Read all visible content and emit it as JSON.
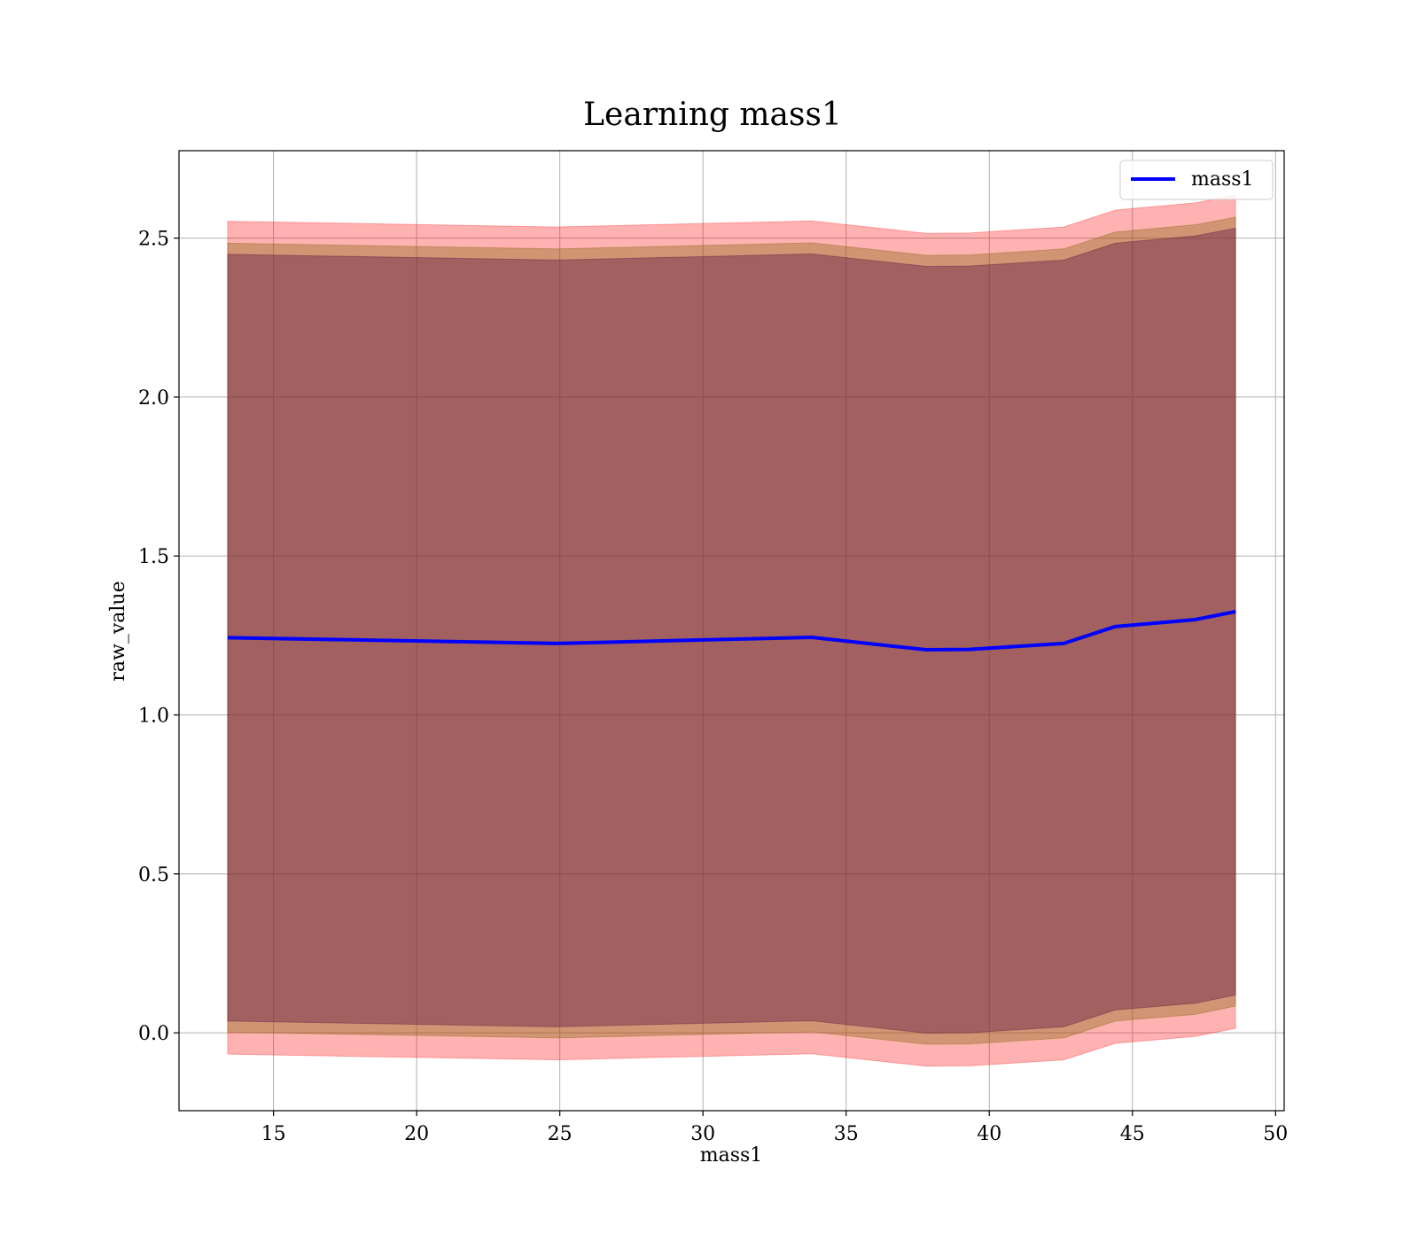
{
  "chart_data": {
    "type": "line",
    "title": "Learning mass1",
    "xlabel": "mass1",
    "ylabel": "raw_value",
    "xlim": [
      11.7,
      50.3
    ],
    "ylim": [
      -0.245,
      2.775
    ],
    "xticks": [
      15,
      20,
      25,
      30,
      35,
      40,
      45,
      50
    ],
    "yticks": [
      0.0,
      0.5,
      1.0,
      1.5,
      2.0,
      2.5
    ],
    "xtick_labels": [
      "15",
      "20",
      "25",
      "30",
      "35",
      "40",
      "45",
      "50"
    ],
    "ytick_labels": [
      "0.0",
      "0.5",
      "1.0",
      "1.5",
      "2.0",
      "2.5"
    ],
    "grid": true,
    "legend": "top-right",
    "x": [
      13.4,
      24.9,
      33.8,
      37.8,
      39.3,
      42.6,
      44.4,
      47.2,
      48.6
    ],
    "series": [
      {
        "name": "mass1",
        "color": "#0000ff",
        "values": [
          1.243,
          1.225,
          1.244,
          1.205,
          1.206,
          1.225,
          1.278,
          1.3,
          1.325
        ]
      }
    ],
    "bands": [
      {
        "color": "#ff0000",
        "opacity": 0.3,
        "lower": [
          -0.067,
          -0.085,
          -0.066,
          -0.105,
          -0.104,
          -0.085,
          -0.033,
          -0.011,
          0.014
        ],
        "upper": [
          2.553,
          2.535,
          2.554,
          2.515,
          2.516,
          2.535,
          2.588,
          2.611,
          2.635
        ]
      },
      {
        "color": "#8b6914",
        "opacity": 0.4,
        "lower": [
          0.002,
          -0.016,
          0.003,
          -0.036,
          -0.035,
          -0.016,
          0.037,
          0.058,
          0.084
        ],
        "upper": [
          2.484,
          2.466,
          2.485,
          2.446,
          2.447,
          2.466,
          2.519,
          2.542,
          2.566
        ]
      },
      {
        "color": "#6b1f4a",
        "opacity": 0.45,
        "lower": [
          0.037,
          0.019,
          0.038,
          -0.001,
          0.0,
          0.019,
          0.072,
          0.093,
          0.119
        ],
        "upper": [
          2.449,
          2.431,
          2.45,
          2.411,
          2.412,
          2.431,
          2.484,
          2.507,
          2.531
        ]
      }
    ]
  }
}
